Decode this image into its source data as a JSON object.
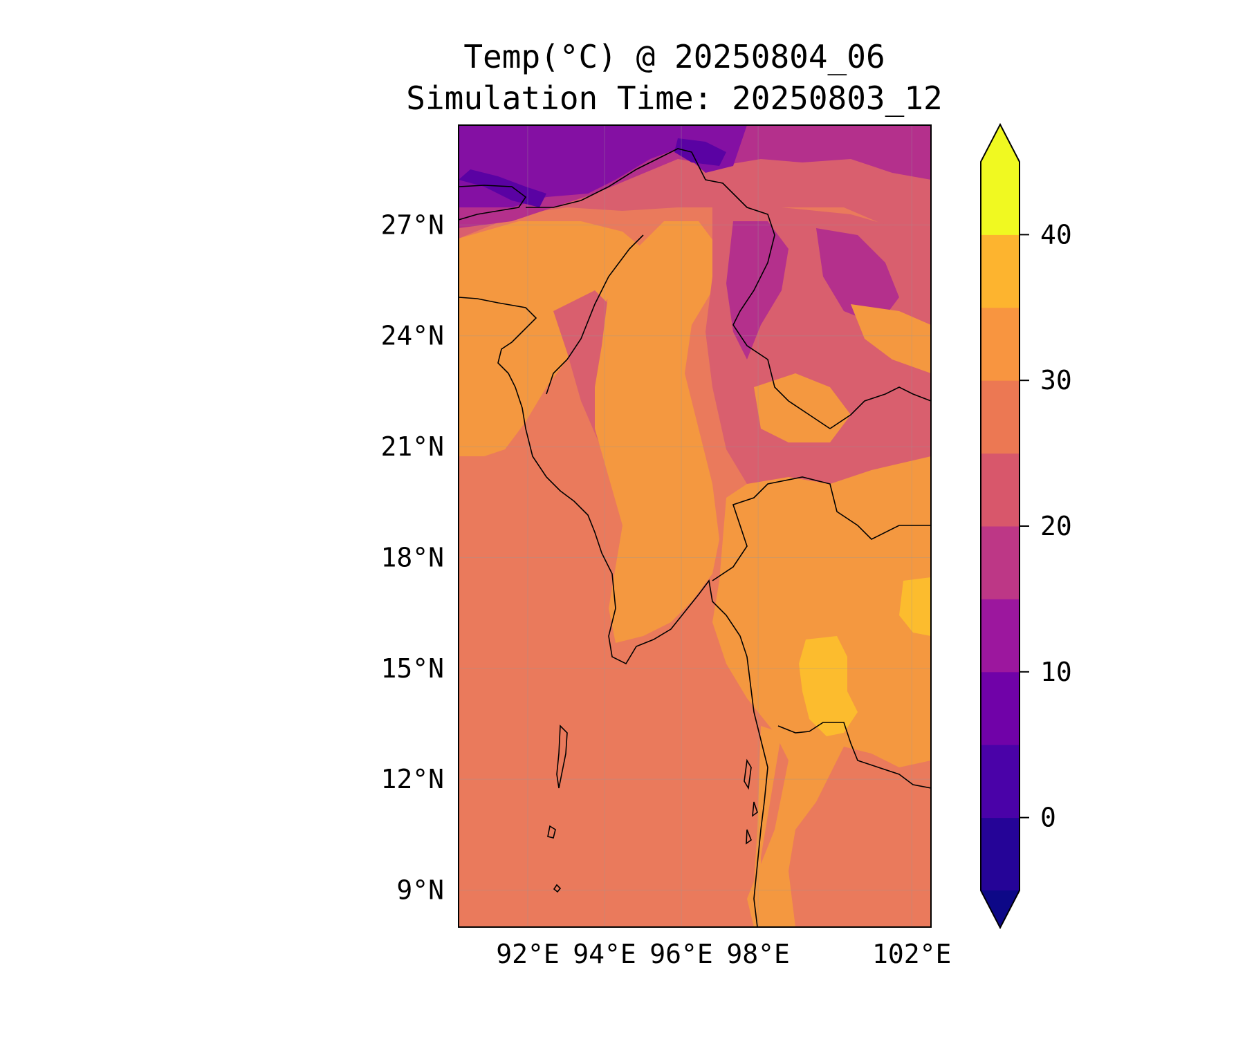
{
  "title": "Temp(°C) @ 20250804_06",
  "subtitle": "Simulation Time: 20250803_12",
  "map": {
    "lon_range": [
      90.2,
      102.5
    ],
    "lat_range": [
      8.0,
      29.7
    ],
    "lat_ticks": [
      {
        "value": 27,
        "label": "27°N"
      },
      {
        "value": 24,
        "label": "24°N"
      },
      {
        "value": 21,
        "label": "21°N"
      },
      {
        "value": 18,
        "label": "18°N"
      },
      {
        "value": 15,
        "label": "15°N"
      },
      {
        "value": 12,
        "label": "12°N"
      },
      {
        "value": 9,
        "label": "9°N"
      }
    ],
    "lon_ticks": [
      {
        "value": 92,
        "label": "92°E"
      },
      {
        "value": 94,
        "label": "94°E"
      },
      {
        "value": 96,
        "label": "96°E"
      },
      {
        "value": 98,
        "label": "98°E"
      },
      {
        "value": 102,
        "label": "102°E"
      }
    ],
    "grid": true,
    "ocean_value": 28,
    "colors": {
      "ocean": "#ea7a5c",
      "lowland": "#f49840",
      "hot_plain": "#fcbc2e",
      "upland": "#d95f6e",
      "mountain": "#b4308c",
      "high_peak": "#8410a3",
      "peak_core": "#5a02a3",
      "coastline": "#000000"
    }
  },
  "colorbar": {
    "ticks": [
      {
        "value": 40,
        "label": "40"
      },
      {
        "value": 30,
        "label": "30"
      },
      {
        "value": 20,
        "label": "20"
      },
      {
        "value": 10,
        "label": "10"
      },
      {
        "value": 0,
        "label": "0"
      }
    ],
    "levels": [
      -5,
      0,
      5,
      10,
      15,
      20,
      25,
      30,
      35,
      40,
      45
    ],
    "colors": [
      "#250497",
      "#4a02a8",
      "#7002a8",
      "#9c179e",
      "#bd3786",
      "#d8576b",
      "#ec7853",
      "#f89540",
      "#fdb42f",
      "#f0f921"
    ],
    "under_color": "#0d0887",
    "over_color": "#f0f921",
    "extend": "both"
  }
}
